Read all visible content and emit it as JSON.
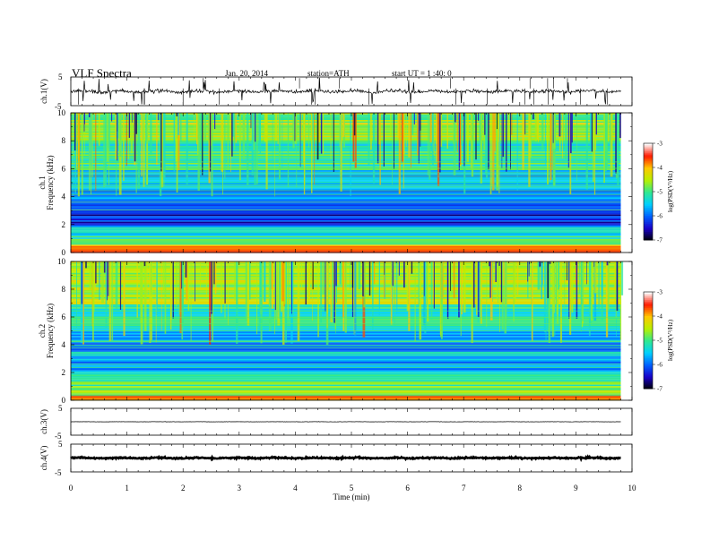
{
  "header": {
    "title": "VLF  Spectra",
    "date": "Jan. 20, 2014",
    "station": "station=ATH",
    "start": "start  UT  =   1 :40: 0"
  },
  "colors": {
    "colormap": [
      "#000000",
      "#1a00c8",
      "#0060ff",
      "#00d0ff",
      "#30e890",
      "#b8f000",
      "#ffc800",
      "#ff1a00",
      "#ffffff"
    ]
  },
  "chart_data": [
    {
      "type": "line",
      "name": "ch1-waveform",
      "ylabel": "ch.1(V)",
      "ylim": [
        -5,
        5
      ],
      "yticks": [
        "5",
        "-5"
      ],
      "xlim": [
        0,
        10
      ],
      "baseline": 0,
      "noise_amplitude": 0.6,
      "x_end": 9.8
    },
    {
      "type": "heatmap",
      "name": "ch1-spectrogram",
      "ylabel_lines": [
        "ch.1",
        "Frequency  (kHz)"
      ],
      "ylim": [
        0,
        10
      ],
      "yticks": [
        0,
        2,
        4,
        6,
        8,
        10
      ],
      "xlim": [
        0,
        10
      ],
      "x_end": 9.8,
      "colorbar": {
        "label": "log(PSD(V²/Hz)",
        "range": [
          -7,
          -3
        ],
        "ticks": [
          "-3",
          "-4",
          "-5",
          "-6",
          "-7"
        ]
      },
      "bands": [
        {
          "f": [
            0,
            0.25
          ],
          "logpsd": -3.5
        },
        {
          "f": [
            0.25,
            0.6
          ],
          "logpsd": -4.2
        },
        {
          "f": [
            0.6,
            1.2
          ],
          "logpsd": -5.0
        },
        {
          "f": [
            1.2,
            2.0
          ],
          "logpsd": -5.4
        },
        {
          "f": [
            2.0,
            3.3
          ],
          "logpsd": -6.2
        },
        {
          "f": [
            3.3,
            4.6
          ],
          "logpsd": -6.0
        },
        {
          "f": [
            4.6,
            6.0
          ],
          "logpsd": -5.6
        },
        {
          "f": [
            6.0,
            8.0
          ],
          "logpsd": -5.0
        },
        {
          "f": [
            8.0,
            10.0
          ],
          "logpsd": -4.7
        }
      ]
    },
    {
      "type": "heatmap",
      "name": "ch2-spectrogram",
      "ylabel_lines": [
        "ch.2",
        "Frequency  (kHz)"
      ],
      "ylim": [
        0,
        10
      ],
      "yticks": [
        0,
        2,
        4,
        6,
        8,
        10
      ],
      "xlim": [
        0,
        10
      ],
      "x_end": 9.8,
      "colorbar": {
        "label": "log(PSD(V²/Hz)",
        "range": [
          -7,
          -3
        ],
        "ticks": [
          "-3",
          "-4",
          "-5",
          "-6",
          "-7"
        ]
      },
      "bands": [
        {
          "f": [
            0,
            0.3
          ],
          "logpsd": -4.0
        },
        {
          "f": [
            0.3,
            1.0
          ],
          "logpsd": -4.6
        },
        {
          "f": [
            1.0,
            2.0
          ],
          "logpsd": -5.2
        },
        {
          "f": [
            2.0,
            3.5
          ],
          "logpsd": -5.6
        },
        {
          "f": [
            3.5,
            5.0
          ],
          "logpsd": -5.8
        },
        {
          "f": [
            5.0,
            7.0
          ],
          "logpsd": -5.2
        },
        {
          "f": [
            7.0,
            10.0
          ],
          "logpsd": -4.5
        }
      ]
    },
    {
      "type": "line",
      "name": "ch3-waveform",
      "ylabel": "ch.3(V)",
      "ylim": [
        -5,
        5
      ],
      "yticks": [
        "5",
        "-5"
      ],
      "xlim": [
        0,
        10
      ],
      "baseline": 0,
      "noise_amplitude": 0.05,
      "x_end": 9.8
    },
    {
      "type": "line",
      "name": "ch4-waveform",
      "ylabel": "ch.4(V)",
      "ylim": [
        -5,
        5
      ],
      "yticks": [
        "5",
        "-5"
      ],
      "xlim": [
        0,
        10
      ],
      "baseline": 0,
      "noise_amplitude": 0.25,
      "x_end": 9.8,
      "xlabel": "Time  (min)",
      "xticks": [
        0,
        1,
        2,
        3,
        4,
        5,
        6,
        7,
        8,
        9,
        10
      ]
    }
  ]
}
